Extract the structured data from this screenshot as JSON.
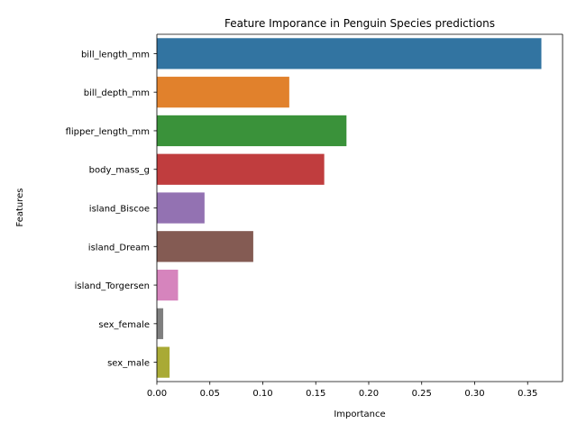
{
  "chart_data": {
    "type": "bar",
    "orientation": "horizontal",
    "title": "Feature Imporance in Penguin Species predictions",
    "xlabel": "Importance",
    "ylabel": "Features",
    "categories": [
      "bill_length_mm",
      "bill_depth_mm",
      "flipper_length_mm",
      "body_mass_g",
      "island_Biscoe",
      "island_Dream",
      "island_Torgersen",
      "sex_female",
      "sex_male"
    ],
    "values": [
      0.363,
      0.125,
      0.179,
      0.158,
      0.045,
      0.091,
      0.02,
      0.006,
      0.012
    ],
    "colors": [
      "#3274a1",
      "#e1812c",
      "#3a923a",
      "#c03d3e",
      "#9372b2",
      "#845b53",
      "#d684bd",
      "#7f7f7f",
      "#a9aa35"
    ],
    "xlim": [
      0,
      0.383
    ],
    "xticks": [
      "0.00",
      "0.05",
      "0.10",
      "0.15",
      "0.20",
      "0.25",
      "0.30",
      "0.35"
    ],
    "xtick_values": [
      0,
      0.05,
      0.1,
      0.15,
      0.2,
      0.25,
      0.3,
      0.35
    ],
    "grid": false,
    "legend": "none"
  }
}
